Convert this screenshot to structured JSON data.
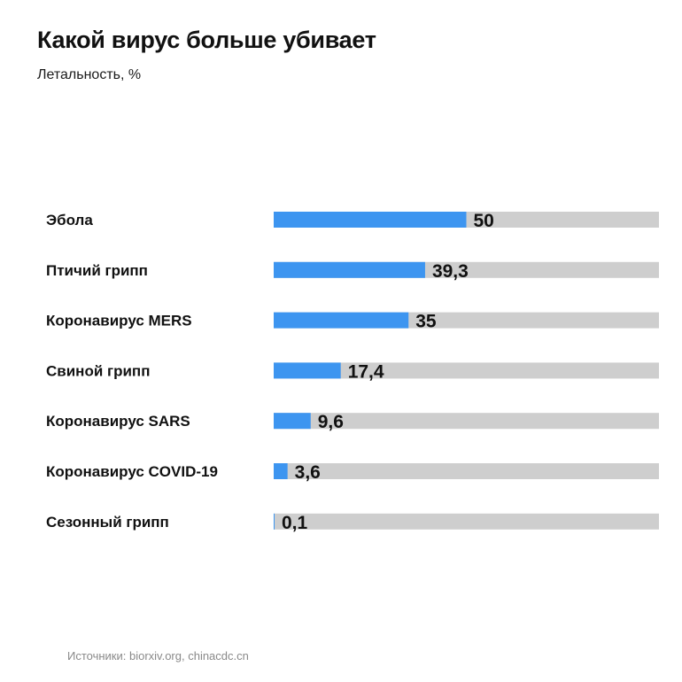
{
  "header": {
    "title": "Какой вирус больше убивает",
    "subtitle": "Летальность, %"
  },
  "footer": {
    "sources": "Источники: biorxiv.org, chinacdc.cn"
  },
  "colors": {
    "bar": "#3d95f0",
    "track": "#cecece"
  },
  "chart_data": {
    "type": "bar",
    "orientation": "horizontal",
    "title": "Какой вирус больше убивает",
    "subtitle": "Летальность, %",
    "categories": [
      "Эбола",
      "Птичий грипп",
      "Коронавирус MERS",
      "Свиной грипп",
      "Коронавирус SARS",
      "Коронавирус COVID-19",
      "Сезонный грипп"
    ],
    "values": [
      50,
      39.3,
      35,
      17.4,
      9.6,
      3.6,
      0.1
    ],
    "value_labels": [
      "50",
      "39,3",
      "35",
      "17,4",
      "9,6",
      "3,6",
      "0,1"
    ],
    "xlim": [
      0,
      100
    ],
    "grid": false,
    "legend": "none"
  }
}
